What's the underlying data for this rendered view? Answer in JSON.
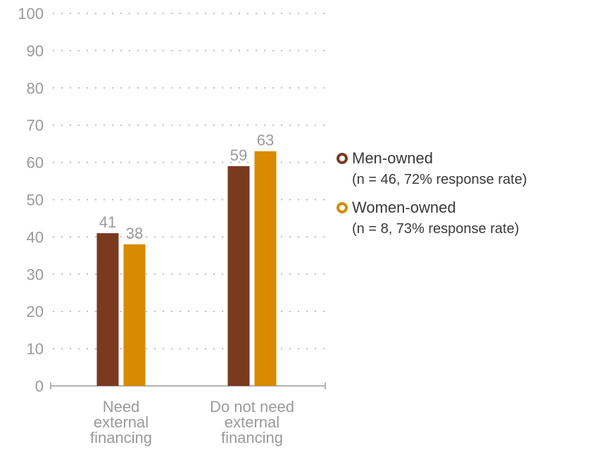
{
  "chart_data": {
    "type": "bar",
    "categories": [
      "Need external financing",
      "Do not need external financing"
    ],
    "category_lines": [
      [
        "Need",
        "external",
        "financing"
      ],
      [
        "Do not need",
        "external",
        "financing"
      ]
    ],
    "series": [
      {
        "name": "Men-owned",
        "note": "(n = 46, 72% response rate)",
        "values": [
          41,
          59
        ],
        "color": "#7a3a1e"
      },
      {
        "name": "Women-owned",
        "note": "(n = 8, 73% response rate)",
        "values": [
          38,
          63
        ],
        "color": "#d98a00"
      }
    ],
    "yticks": [
      0,
      10,
      20,
      30,
      40,
      50,
      60,
      70,
      80,
      90,
      100
    ],
    "ylim": [
      0,
      100
    ],
    "grid": "dotted",
    "legend_position": "right",
    "title": "",
    "xlabel": "",
    "ylabel": ""
  }
}
